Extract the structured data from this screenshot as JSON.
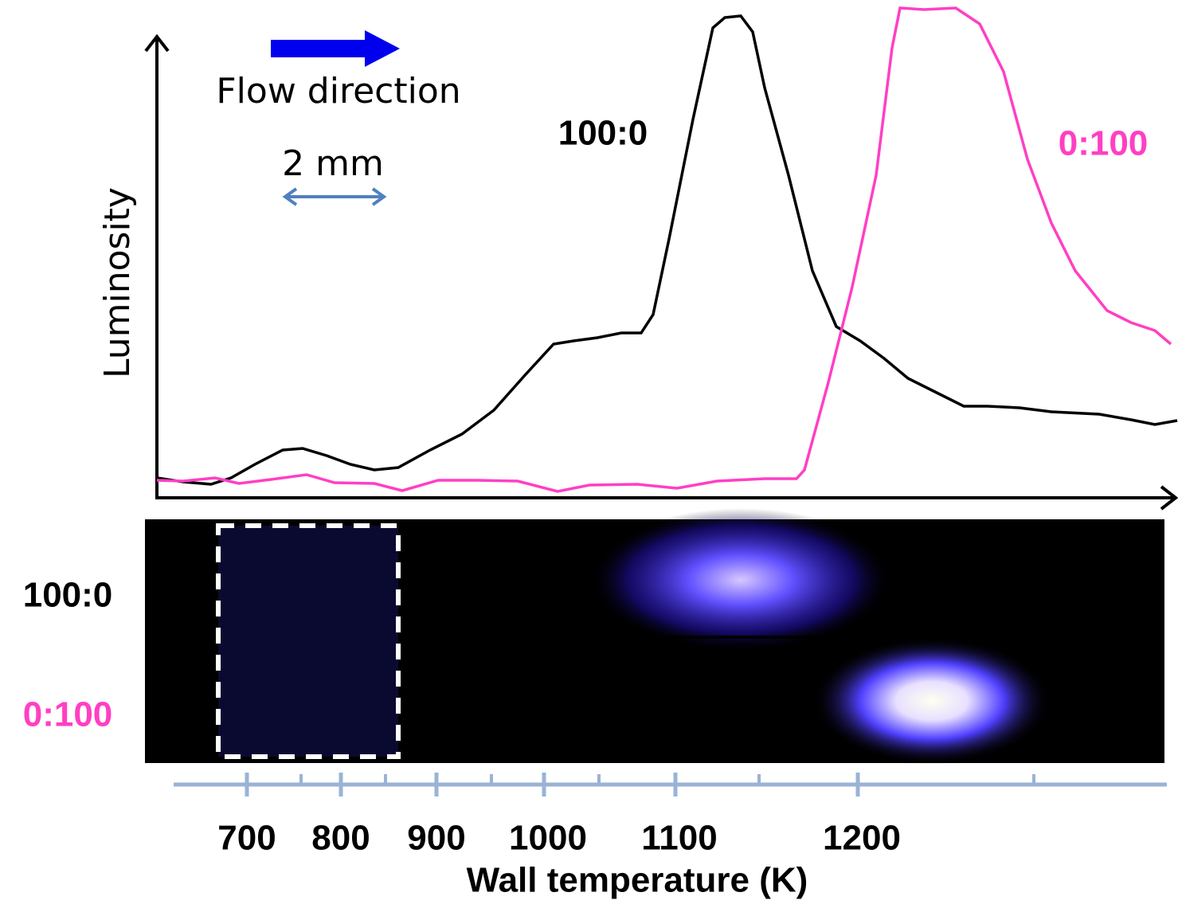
{
  "labels": {
    "flow": "Flow direction",
    "scale": "2 mm",
    "y_axis": "Luminosity",
    "x_axis": "Wall temperature (K)"
  },
  "series": [
    {
      "name": "100:0",
      "color": "#000000"
    },
    {
      "name": "0:100",
      "color": "#ff3fc4"
    }
  ],
  "image_rows": [
    "100:0",
    "0:100"
  ],
  "x_ticks": [
    700,
    800,
    900,
    1000,
    1100,
    1200
  ]
}
